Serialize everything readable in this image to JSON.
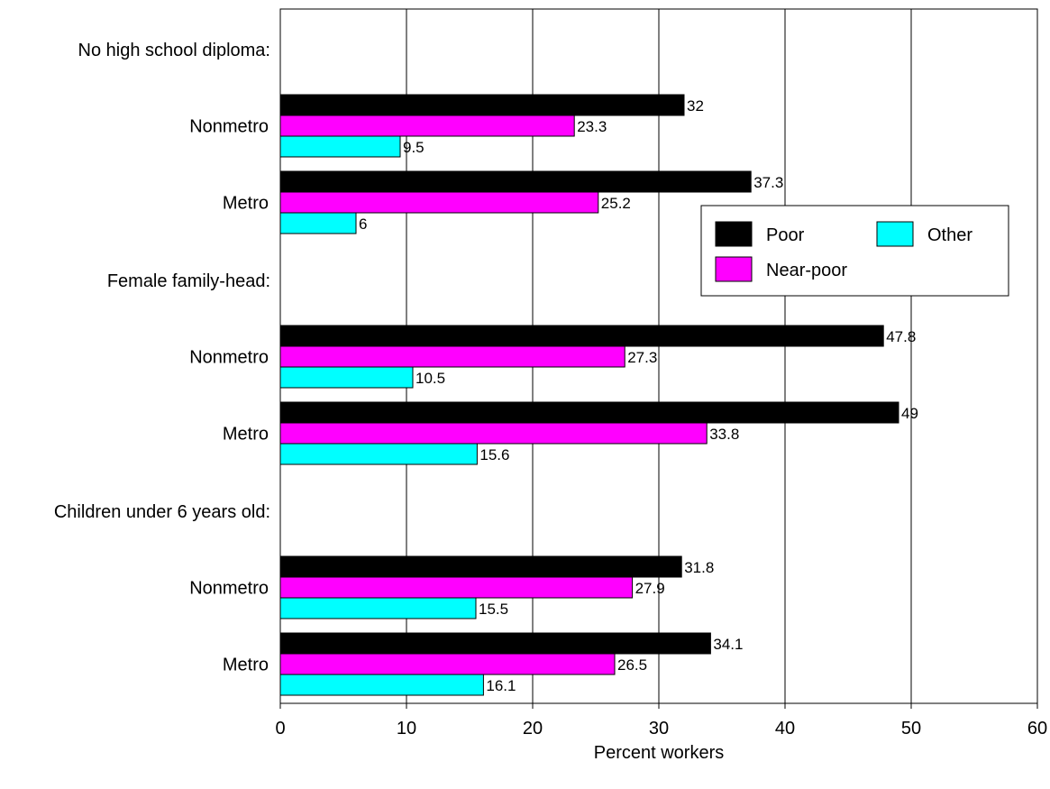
{
  "chart_data": {
    "type": "bar",
    "orientation": "horizontal",
    "title": "",
    "xlabel": "Percent workers",
    "ylabel": "",
    "xlim": [
      0,
      60
    ],
    "xticks": [
      0,
      10,
      20,
      30,
      40,
      50,
      60
    ],
    "grid": "vertical",
    "legend_position": "right",
    "groups": [
      {
        "label": "No high school diploma:",
        "rows": [
          {
            "label": "Nonmetro",
            "values": [
              32,
              23.3,
              9.5
            ],
            "value_labels": [
              "32",
              "23.3",
              "9.5"
            ]
          },
          {
            "label": "Metro",
            "values": [
              37.3,
              25.2,
              6
            ],
            "value_labels": [
              "37.3",
              "25.2",
              "6"
            ]
          }
        ]
      },
      {
        "label": "Female family-head:",
        "rows": [
          {
            "label": "Nonmetro",
            "values": [
              47.8,
              27.3,
              10.5
            ],
            "value_labels": [
              "47.8",
              "27.3",
              "10.5"
            ]
          },
          {
            "label": "Metro",
            "values": [
              49,
              33.8,
              15.6
            ],
            "value_labels": [
              "49",
              "33.8",
              "15.6"
            ]
          }
        ]
      },
      {
        "label": "Children under 6 years old:",
        "rows": [
          {
            "label": "Nonmetro",
            "values": [
              31.8,
              27.9,
              15.5
            ],
            "value_labels": [
              "31.8",
              "27.9",
              "15.5"
            ]
          },
          {
            "label": "Metro",
            "values": [
              34.1,
              26.5,
              16.1
            ],
            "value_labels": [
              "34.1",
              "26.5",
              "16.1"
            ]
          }
        ]
      }
    ],
    "series": [
      {
        "name": "Poor",
        "color": "#000000"
      },
      {
        "name": "Near-poor",
        "color": "#ff00ff"
      },
      {
        "name": "Other",
        "color": "#00ffff"
      }
    ]
  }
}
